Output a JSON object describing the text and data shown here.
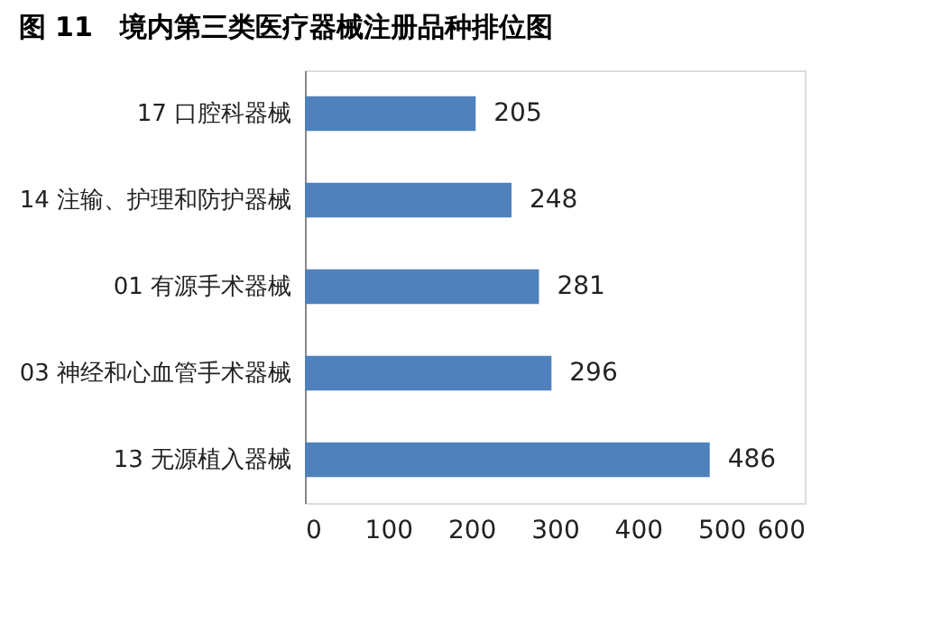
{
  "chart_data": {
    "type": "bar",
    "orientation": "horizontal",
    "title": "图 11　境内第三类医疗器械注册品种排位图",
    "categories": [
      "17 口腔科器械",
      "14 注输、护理和防护器械",
      "01 有源手术器械",
      "03 神经和心血管手术器械",
      "13 无源植入器械"
    ],
    "values": [
      205,
      248,
      281,
      296,
      486
    ],
    "color": "#4f81bd",
    "xlim": [
      0,
      600
    ],
    "xticks": [
      0,
      100,
      200,
      300,
      400,
      500,
      600
    ],
    "grid": false,
    "data_labels": true
  }
}
